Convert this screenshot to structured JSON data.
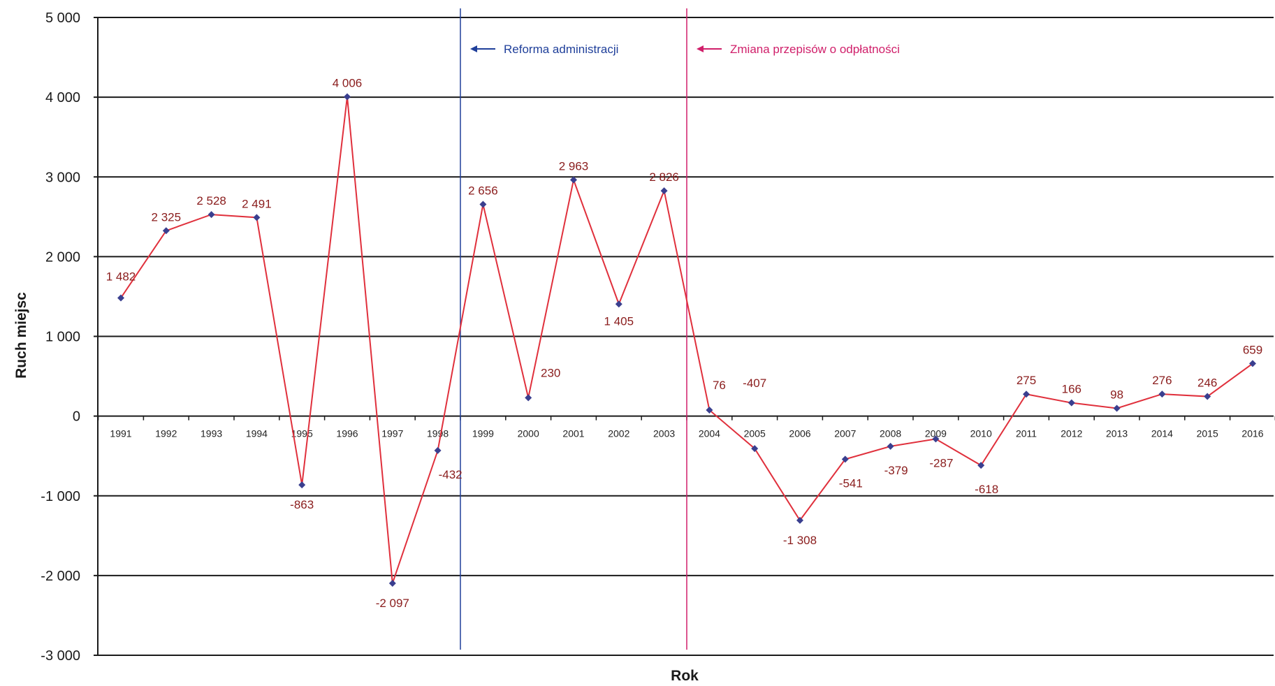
{
  "chart_data": {
    "type": "line",
    "title": "",
    "xlabel": "Rok",
    "ylabel": "Ruch miejsc",
    "ylim": [
      -3000,
      5000
    ],
    "yticks": [
      5000,
      4000,
      3000,
      2000,
      1000,
      0,
      -1000,
      -2000,
      -3000
    ],
    "ytick_labels": [
      "5 000",
      "4 000",
      "3 000",
      "2 000",
      "1 000",
      "0",
      "-1 000",
      "-2 000",
      "-3 000"
    ],
    "grid": true,
    "categories": [
      "1991",
      "1992",
      "1993",
      "1994",
      "1995",
      "1996",
      "1997",
      "1998",
      "1999",
      "2000",
      "2001",
      "2002",
      "2003",
      "2004",
      "2005",
      "2006",
      "2007",
      "2008",
      "2009",
      "2010",
      "2011",
      "2012",
      "2013",
      "2014",
      "2015",
      "2016"
    ],
    "series": [
      {
        "values": [
          1482,
          2325,
          2528,
          2491,
          -863,
          4006,
          -2097,
          -432,
          2656,
          230,
          2963,
          1405,
          2826,
          76,
          -407,
          -1308,
          -541,
          -379,
          -287,
          -618,
          275,
          166,
          98,
          276,
          246,
          659
        ],
        "labels": [
          "1 482",
          "2 325",
          "2 528",
          "2 491",
          "-863",
          "4 006",
          "-2 097",
          "-432",
          "2 656",
          "230",
          "2 963",
          "1 405",
          "2 826",
          "76",
          "-407",
          "-1 308",
          "-541",
          "-379",
          "-287",
          "-618",
          "275",
          "166",
          "98",
          "276",
          "246",
          "659"
        ],
        "color": "#e0303c",
        "marker_color": "#3a3f8f"
      }
    ],
    "annotations": [
      {
        "text": "Reforma administracji",
        "position_between": [
          "1998",
          "1999"
        ],
        "color": "#1f3f9a"
      },
      {
        "text": "Zmiana przepisów o odpłatności",
        "position_between": [
          "2003",
          "2004"
        ],
        "color": "#d01f6a"
      }
    ]
  }
}
